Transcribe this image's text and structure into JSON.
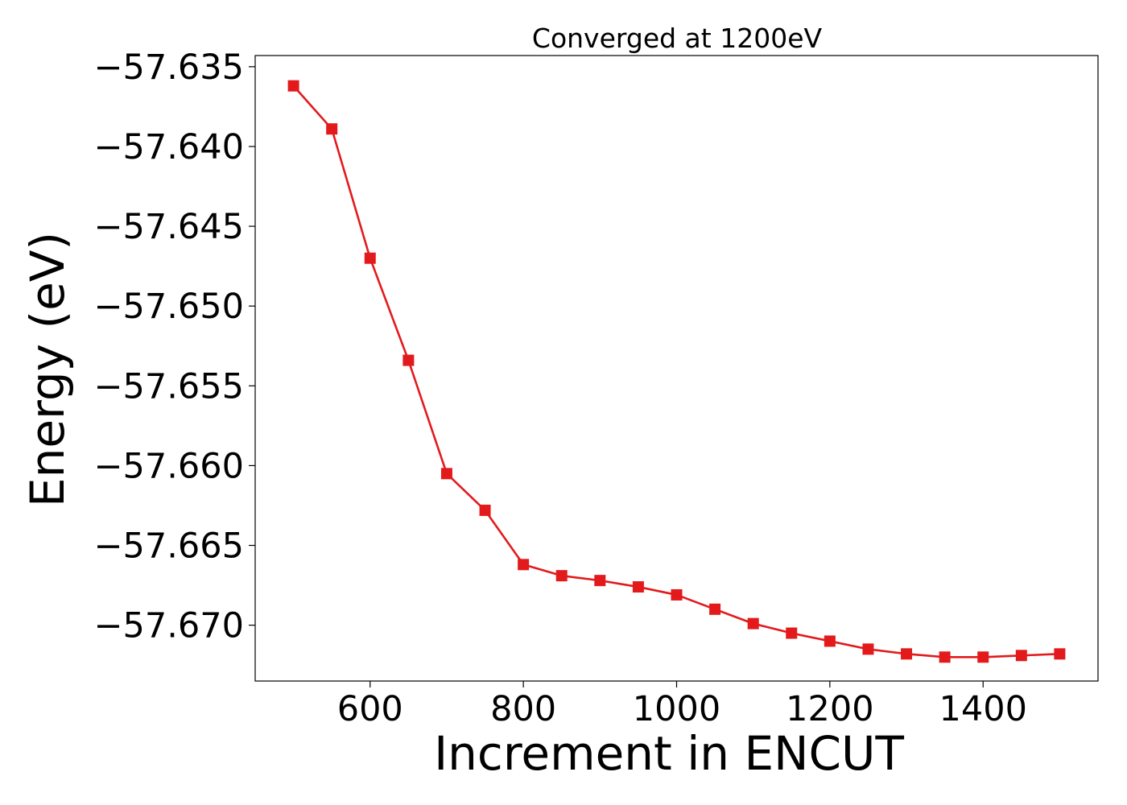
{
  "chart_data": {
    "type": "line",
    "title": "Converged at 1200eV",
    "xlabel": "Increment in ENCUT",
    "ylabel": "Energy (eV)",
    "xlim": [
      450,
      1550
    ],
    "ylim": [
      -57.6735,
      -57.6343
    ],
    "xticks": [
      600,
      800,
      1000,
      1200,
      1400
    ],
    "xtick_labels": [
      "600",
      "800",
      "1000",
      "1200",
      "1400"
    ],
    "yticks": [
      -57.635,
      -57.64,
      -57.645,
      -57.65,
      -57.655,
      -57.66,
      -57.665,
      -57.67
    ],
    "ytick_labels": [
      "−57.635",
      "−57.640",
      "−57.645",
      "−57.650",
      "−57.655",
      "−57.660",
      "−57.665",
      "−57.670"
    ],
    "grid": false,
    "legend": "none",
    "series": [
      {
        "color": "#e31a1c",
        "marker": "square",
        "x": [
          500,
          550,
          600,
          650,
          700,
          750,
          800,
          850,
          900,
          950,
          1000,
          1050,
          1100,
          1150,
          1200,
          1250,
          1300,
          1350,
          1400,
          1450,
          1500
        ],
        "y": [
          -57.6362,
          -57.6389,
          -57.647,
          -57.6534,
          -57.6605,
          -57.6628,
          -57.6662,
          -57.6669,
          -57.6672,
          -57.6676,
          -57.6681,
          -57.669,
          -57.6699,
          -57.6705,
          -57.671,
          -57.6715,
          -57.6718,
          -57.672,
          -57.672,
          -57.6719,
          -57.6718
        ]
      }
    ]
  }
}
